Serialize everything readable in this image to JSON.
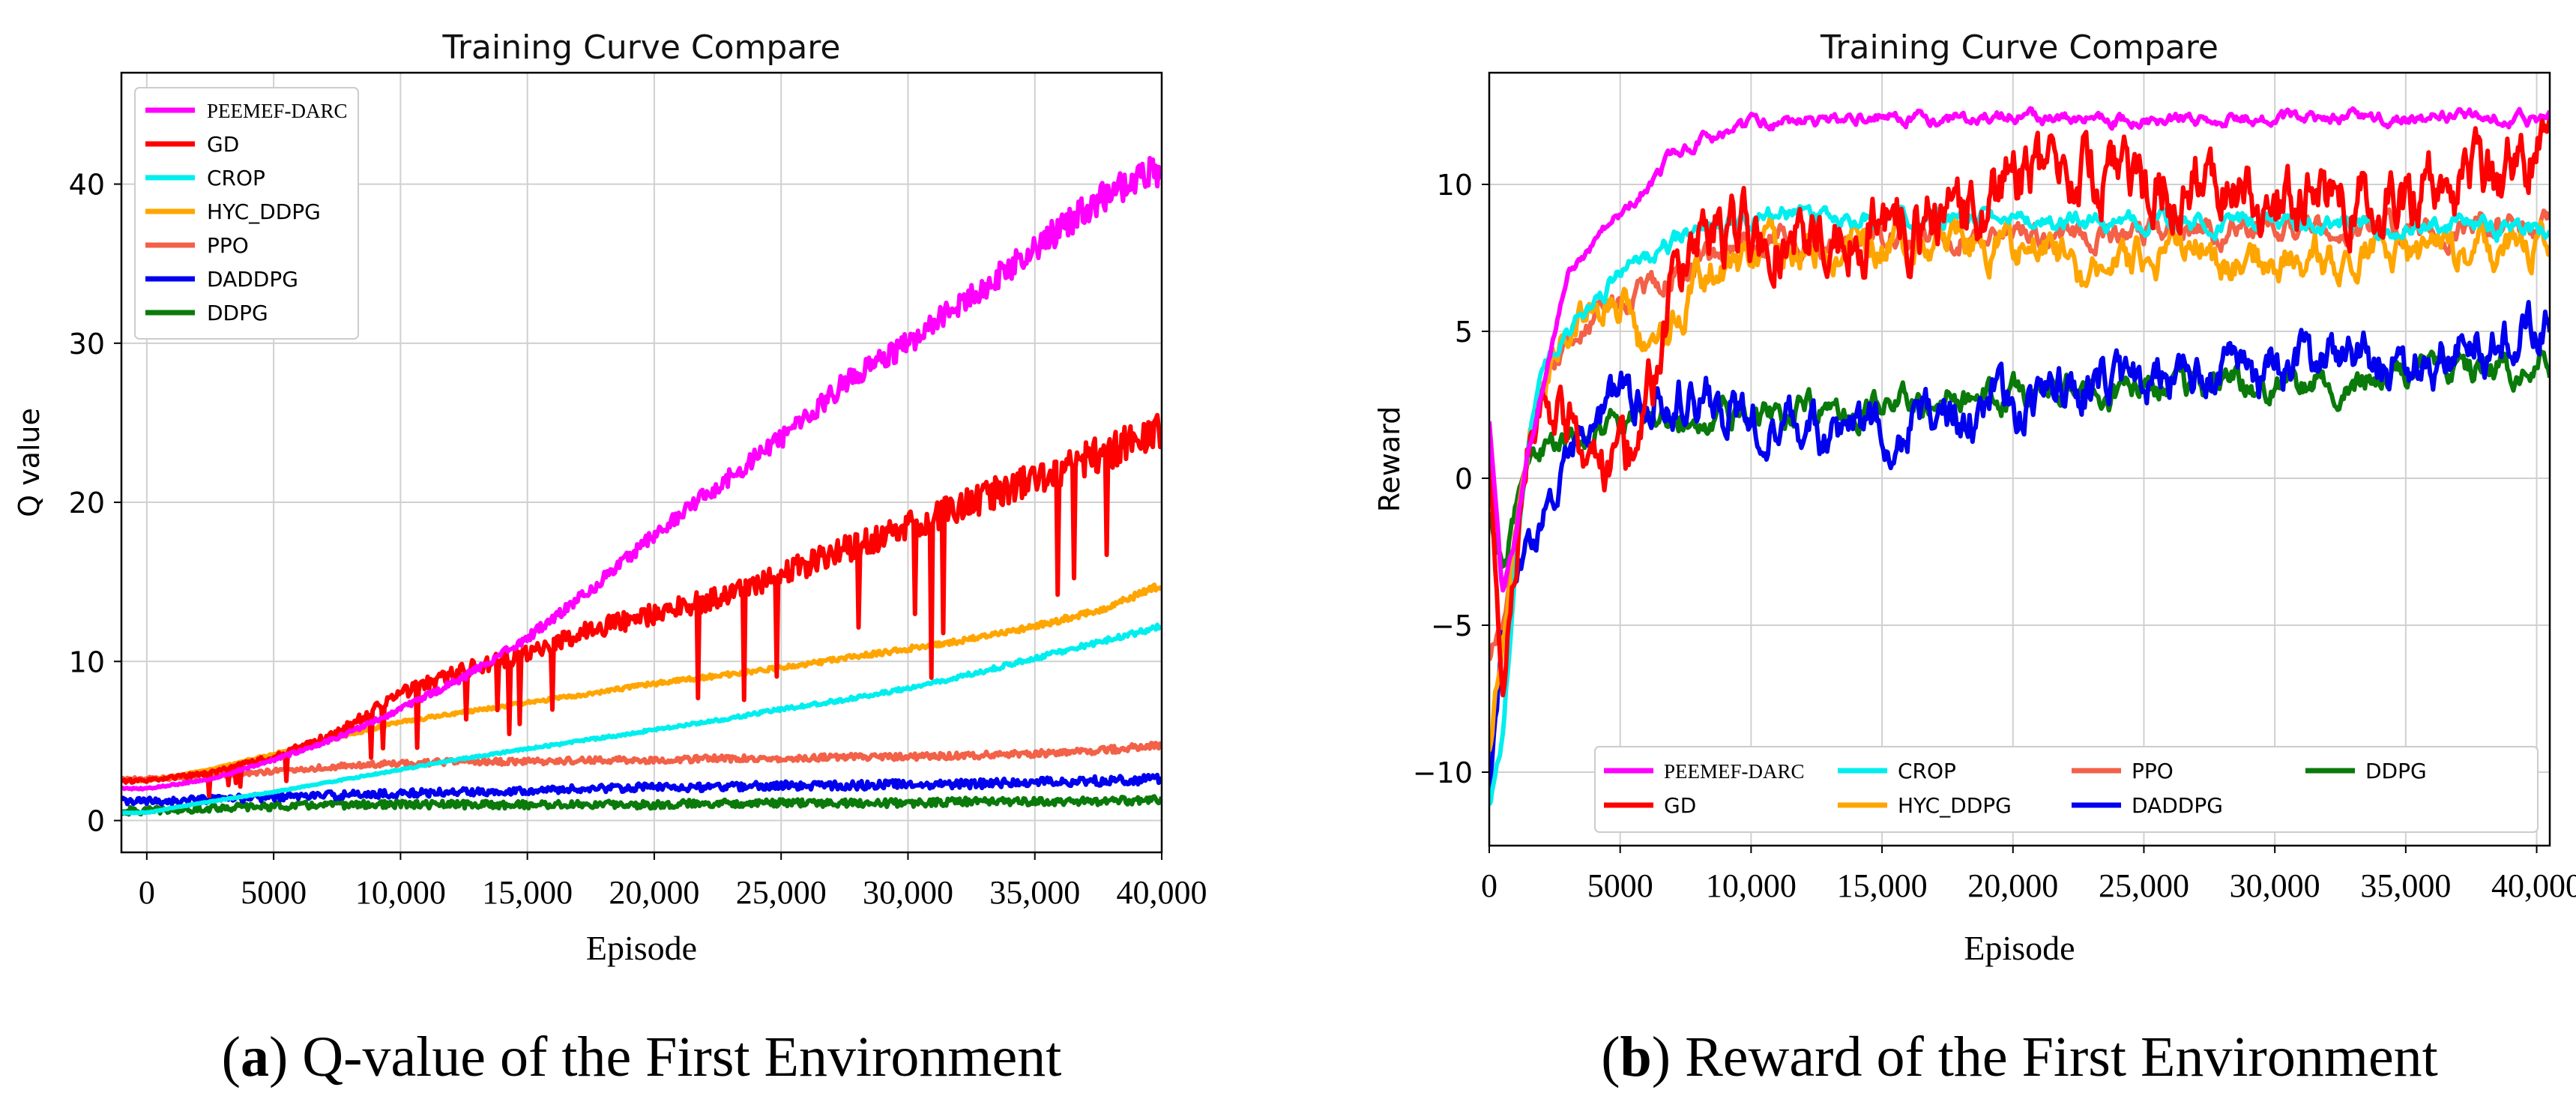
{
  "colors": {
    "PEEMEF-DARC": "#ff00ff",
    "GD": "#ff0000",
    "CROP": "#00eeee",
    "HYC_DDPG": "#ffa500",
    "PPO": "#f26148",
    "DADDPG": "#0000ee",
    "DDPG": "#0a7a0a"
  },
  "chart_data": [
    {
      "type": "line",
      "title": "Training Curve Compare",
      "xlabel": "Episode",
      "ylabel": "Q value",
      "caption_letter": "a",
      "caption_text": " Q-value of the First Environment",
      "xlim": [
        -1000,
        40000
      ],
      "ylim": [
        -2,
        47
      ],
      "xticks": [
        0,
        5000,
        10000,
        15000,
        20000,
        25000,
        30000,
        35000,
        40000
      ],
      "xtick_labels": [
        "0",
        "5000",
        "10,000",
        "15,000",
        "20,000",
        "25,000",
        "30,000",
        "35,000",
        "40,000"
      ],
      "yticks": [
        0,
        10,
        20,
        30,
        40
      ],
      "ytick_labels": [
        "0",
        "10",
        "20",
        "30",
        "40"
      ],
      "grid": true,
      "legend_position": "top-left",
      "legend_columns": 1,
      "series": [
        {
          "name": "PEEMEF-DARC",
          "x": [
            0,
            2500,
            5000,
            7500,
            10000,
            12500,
            15000,
            17500,
            20000,
            22500,
            25000,
            27500,
            30000,
            32500,
            35000,
            37500,
            40000
          ],
          "values": [
            2.0,
            2.6,
            3.8,
            5.2,
            7.0,
            9.0,
            11.5,
            14.5,
            18.0,
            21.0,
            24.0,
            27.5,
            30.0,
            33.0,
            36.0,
            39.0,
            41.0
          ]
        },
        {
          "name": "GD",
          "x": [
            0,
            2500,
            5000,
            7500,
            10000,
            12500,
            15000,
            17500,
            20000,
            22500,
            25000,
            27500,
            30000,
            32500,
            35000,
            37500,
            40000
          ],
          "values": [
            2.5,
            3.0,
            4.0,
            5.5,
            8.0,
            9.5,
            10.5,
            12.0,
            13.0,
            14.0,
            15.5,
            17.0,
            18.5,
            20.0,
            21.5,
            23.0,
            24.5
          ]
        },
        {
          "name": "CROP",
          "x": [
            0,
            2500,
            5000,
            7500,
            10000,
            12500,
            15000,
            17500,
            20000,
            22500,
            25000,
            27500,
            30000,
            32500,
            35000,
            37500,
            40000
          ],
          "values": [
            0.5,
            1.2,
            1.8,
            2.5,
            3.2,
            3.9,
            4.5,
            5.1,
            5.7,
            6.3,
            7.0,
            7.6,
            8.3,
            9.2,
            10.2,
            11.2,
            12.2
          ]
        },
        {
          "name": "HYC_DDPG",
          "x": [
            0,
            2500,
            5000,
            7500,
            10000,
            12500,
            15000,
            17500,
            20000,
            22500,
            25000,
            27500,
            30000,
            32500,
            35000,
            37500,
            40000
          ],
          "values": [
            2.5,
            3.2,
            4.2,
            5.2,
            6.2,
            6.8,
            7.4,
            8.0,
            8.6,
            9.1,
            9.6,
            10.2,
            10.8,
            11.4,
            12.2,
            13.2,
            14.8
          ]
        },
        {
          "name": "PPO",
          "x": [
            0,
            2500,
            5000,
            7500,
            10000,
            12500,
            15000,
            17500,
            20000,
            22500,
            25000,
            27500,
            30000,
            32500,
            35000,
            37500,
            40000
          ],
          "values": [
            2.6,
            2.8,
            3.1,
            3.4,
            3.6,
            3.7,
            3.7,
            3.8,
            3.8,
            3.9,
            3.9,
            4.0,
            4.0,
            4.1,
            4.2,
            4.4,
            4.7
          ]
        },
        {
          "name": "DADDPG",
          "x": [
            0,
            2500,
            5000,
            7500,
            10000,
            12500,
            15000,
            17500,
            20000,
            22500,
            25000,
            27500,
            30000,
            32500,
            35000,
            37500,
            40000
          ],
          "values": [
            1.2,
            1.3,
            1.5,
            1.6,
            1.7,
            1.8,
            1.9,
            2.0,
            2.1,
            2.1,
            2.2,
            2.2,
            2.3,
            2.3,
            2.4,
            2.5,
            2.6
          ]
        },
        {
          "name": "DDPG",
          "x": [
            0,
            2500,
            5000,
            7500,
            10000,
            12500,
            15000,
            17500,
            20000,
            22500,
            25000,
            27500,
            30000,
            32500,
            35000,
            37500,
            40000
          ],
          "values": [
            0.6,
            0.8,
            0.9,
            1.0,
            1.0,
            1.0,
            1.0,
            1.0,
            1.0,
            1.1,
            1.1,
            1.1,
            1.1,
            1.2,
            1.2,
            1.2,
            1.3
          ]
        }
      ]
    },
    {
      "type": "line",
      "title": "Training Curve Compare",
      "xlabel": "Episode",
      "ylabel": "Reward",
      "caption_letter": "b",
      "caption_text": " Reward of the First Environment",
      "xlim": [
        0,
        40500
      ],
      "ylim": [
        -12.5,
        13.8
      ],
      "xticks": [
        0,
        5000,
        10000,
        15000,
        20000,
        25000,
        30000,
        35000,
        40000
      ],
      "xtick_labels": [
        "0",
        "5000",
        "10,000",
        "15,000",
        "20,000",
        "25,000",
        "30,000",
        "35,000",
        "40,000"
      ],
      "yticks": [
        -10,
        -5,
        0,
        5,
        10
      ],
      "ytick_labels": [
        "−10",
        "−5",
        "0",
        "5",
        "10"
      ],
      "grid": true,
      "legend_position": "bottom-right",
      "legend_columns": 4,
      "series": [
        {
          "name": "PEEMEF-DARC",
          "x": [
            0,
            500,
            1000,
            1500,
            2000,
            3000,
            4000,
            5000,
            6000,
            7000,
            8000,
            10000,
            12500,
            15000,
            17500,
            20000,
            22500,
            25000,
            27500,
            30000,
            32500,
            35000,
            37500,
            40000
          ],
          "values": [
            2.0,
            -4.0,
            -2.0,
            1.0,
            3.0,
            7.0,
            8.0,
            9.0,
            10.0,
            11.0,
            11.5,
            12.0,
            12.2,
            12.3,
            12.2,
            12.3,
            12.2,
            12.2,
            12.3,
            12.2,
            12.3,
            12.2,
            12.3,
            12.2
          ]
        },
        {
          "name": "GD",
          "x": [
            0,
            500,
            1000,
            1500,
            2000,
            3000,
            4000,
            5000,
            6000,
            7000,
            8000,
            10000,
            12500,
            15000,
            17500,
            20000,
            22500,
            25000,
            27500,
            30000,
            32500,
            35000,
            37500,
            40000
          ],
          "values": [
            1.0,
            -6.0,
            -3.0,
            1.0,
            3.0,
            2.0,
            1.0,
            0.5,
            2.0,
            6.0,
            8.0,
            8.5,
            8.5,
            9.0,
            8.5,
            10.0,
            10.5,
            10.0,
            10.0,
            9.5,
            10.0,
            9.5,
            10.0,
            11.0
          ]
        },
        {
          "name": "CROP",
          "x": [
            0,
            500,
            1000,
            1500,
            2000,
            3000,
            4000,
            5000,
            6000,
            7000,
            8000,
            10000,
            12500,
            15000,
            17500,
            20000,
            22500,
            25000,
            27500,
            30000,
            32500,
            35000,
            37500,
            40000
          ],
          "values": [
            -11.0,
            -9.0,
            -3.0,
            1.0,
            4.0,
            5.0,
            6.0,
            7.0,
            7.5,
            8.0,
            8.5,
            9.0,
            9.0,
            8.8,
            8.8,
            8.8,
            8.7,
            8.7,
            8.7,
            8.7,
            8.6,
            8.6,
            8.6,
            8.5
          ]
        },
        {
          "name": "HYC_DDPG",
          "x": [
            0,
            500,
            1000,
            1500,
            2000,
            3000,
            4000,
            5000,
            6000,
            7000,
            8000,
            10000,
            12500,
            15000,
            17500,
            20000,
            22500,
            25000,
            27500,
            30000,
            32500,
            35000,
            37500,
            40000
          ],
          "values": [
            -9.0,
            -6.0,
            -2.0,
            1.0,
            3.0,
            5.0,
            6.0,
            6.0,
            4.0,
            5.0,
            7.0,
            7.5,
            8.0,
            8.0,
            8.0,
            8.0,
            7.0,
            7.5,
            7.5,
            7.5,
            7.5,
            7.5,
            7.5,
            8.0
          ]
        },
        {
          "name": "PPO",
          "x": [
            0,
            500,
            1000,
            1500,
            2000,
            3000,
            4000,
            5000,
            6000,
            7000,
            8000,
            10000,
            12500,
            15000,
            17500,
            20000,
            22500,
            25000,
            27500,
            30000,
            32500,
            35000,
            37500,
            40000
          ],
          "values": [
            -6.0,
            -5.0,
            -2.0,
            1.0,
            3.0,
            4.5,
            5.5,
            6.0,
            6.5,
            7.0,
            7.5,
            8.0,
            8.0,
            8.2,
            8.2,
            8.3,
            8.3,
            8.4,
            8.4,
            8.5,
            8.5,
            8.5,
            8.5,
            8.5
          ]
        },
        {
          "name": "DADDPG",
          "x": [
            0,
            500,
            1000,
            1500,
            2000,
            3000,
            4000,
            5000,
            6000,
            7000,
            8000,
            10000,
            12500,
            15000,
            17500,
            20000,
            22500,
            25000,
            27500,
            30000,
            32500,
            35000,
            37500,
            40000
          ],
          "values": [
            -10.5,
            -6.0,
            -4.0,
            -2.0,
            -2.0,
            0.5,
            2.0,
            2.5,
            3.0,
            3.0,
            3.0,
            2.0,
            1.5,
            1.5,
            2.0,
            2.5,
            3.0,
            3.5,
            3.5,
            3.5,
            4.0,
            4.0,
            4.5,
            5.0
          ]
        },
        {
          "name": "DDPG",
          "x": [
            0,
            500,
            1000,
            1500,
            2000,
            3000,
            4000,
            5000,
            6000,
            7000,
            8000,
            10000,
            12500,
            15000,
            17500,
            20000,
            22500,
            25000,
            27500,
            30000,
            32500,
            35000,
            37500,
            40000
          ],
          "values": [
            -1.0,
            -3.0,
            -1.0,
            0.5,
            1.0,
            1.2,
            1.5,
            1.8,
            2.0,
            2.0,
            2.2,
            2.3,
            2.4,
            2.5,
            2.6,
            2.8,
            3.0,
            3.0,
            3.1,
            3.2,
            3.3,
            3.5,
            3.6,
            3.8
          ]
        }
      ]
    }
  ]
}
